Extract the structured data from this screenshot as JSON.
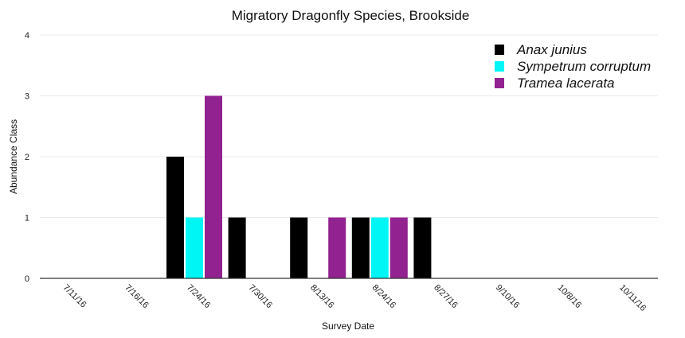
{
  "chart_data": {
    "type": "bar",
    "title": "Migratory Dragonfly Species, Brookside",
    "xlabel": "Survey Date",
    "ylabel": "Abundance Class",
    "ylim": [
      0,
      4
    ],
    "yticks": [
      0,
      1,
      2,
      3,
      4
    ],
    "grid": true,
    "legend_position": "top-right",
    "categories": [
      "7/11/16",
      "7/16/16",
      "7/24/16",
      "7/30/16",
      "8/13/16",
      "8/24/16",
      "8/27/16",
      "9/10/16",
      "10/8/16",
      "10/11/16"
    ],
    "series": [
      {
        "name": "Anax junius",
        "color": "#000000",
        "values": [
          0,
          0,
          2,
          1,
          1,
          1,
          1,
          0,
          0,
          0
        ]
      },
      {
        "name": "Sympetrum corruptum",
        "color": "#00f5f5",
        "values": [
          0,
          0,
          1,
          0,
          0,
          1,
          0,
          0,
          0,
          0
        ]
      },
      {
        "name": "Tramea lacerata",
        "color": "#92228f",
        "values": [
          0,
          0,
          3,
          0,
          1,
          1,
          0,
          0,
          0,
          0
        ]
      }
    ]
  }
}
